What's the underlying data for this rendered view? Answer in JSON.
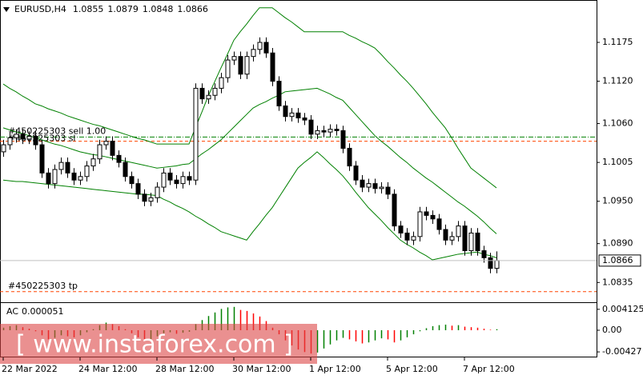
{
  "chart_data": {
    "type": "candlestick",
    "symbol": "EURUSD,H4",
    "categories": [
      "22 Mar 2022",
      null,
      null,
      null,
      null,
      null,
      null,
      null,
      null,
      null,
      null,
      null,
      "24 Mar 12:00",
      null,
      null,
      null,
      null,
      null,
      null,
      null,
      null,
      null,
      null,
      null,
      "28 Mar 12:00",
      null,
      null,
      null,
      null,
      null,
      null,
      null,
      null,
      null,
      null,
      null,
      "30 Mar 12:00",
      null,
      null,
      null,
      null,
      null,
      null,
      null,
      null,
      null,
      null,
      null,
      "1 Apr 12:00",
      null,
      null,
      null,
      null,
      null,
      null,
      null,
      null,
      null,
      null,
      null,
      "5 Apr 12:00",
      null,
      null,
      null,
      null,
      null,
      null,
      null,
      null,
      null,
      null,
      null,
      "7 Apr 12:00",
      null,
      null,
      null,
      null,
      null
    ],
    "open": [
      1.102,
      1.103,
      1.104,
      1.1045,
      1.1038,
      1.1042,
      1.103,
      1.099,
      1.0975,
      1.0995,
      1.1005,
      1.099,
      1.098,
      1.0985,
      1.1,
      1.101,
      1.103,
      1.1035,
      1.1015,
      1.1005,
      1.0985,
      1.0975,
      1.096,
      1.095,
      1.0955,
      1.097,
      1.099,
      1.098,
      1.0975,
      1.0985,
      1.098,
      1.111,
      1.1095,
      1.11,
      1.111,
      1.1125,
      1.115,
      1.1155,
      1.113,
      1.1155,
      1.1165,
      1.1175,
      1.116,
      1.112,
      1.1085,
      1.107,
      1.1075,
      1.1068,
      1.1065,
      1.1045,
      1.105,
      1.1048,
      1.1052,
      1.105,
      1.1025,
      1.1,
      1.098,
      1.097,
      1.0975,
      1.0968,
      1.097,
      1.096,
      1.0915,
      1.0905,
      1.0895,
      1.09,
      1.0935,
      1.093,
      1.0925,
      1.091,
      1.0895,
      1.09,
      1.0915,
      1.088,
      1.0905,
      1.088,
      1.087,
      1.0855
    ],
    "high": [
      1.1037,
      1.1047,
      1.1052,
      1.1052,
      1.1049,
      1.1049,
      1.1037,
      1.0997,
      1.1002,
      1.1012,
      1.1012,
      1.0997,
      1.0992,
      1.1007,
      1.1017,
      1.1037,
      1.1042,
      1.1042,
      1.1022,
      1.1012,
      1.0992,
      1.0982,
      1.0967,
      1.0962,
      1.0977,
      1.0997,
      1.0997,
      1.0987,
      1.0992,
      1.0992,
      1.1117,
      1.1117,
      1.1107,
      1.1117,
      1.1132,
      1.1157,
      1.1162,
      1.1162,
      1.1162,
      1.1172,
      1.1182,
      1.1182,
      1.1167,
      1.1127,
      1.1092,
      1.1082,
      1.1082,
      1.1075,
      1.1072,
      1.1057,
      1.1057,
      1.1059,
      1.1059,
      1.1057,
      1.1032,
      1.1007,
      1.0987,
      1.0982,
      1.0982,
      1.0977,
      1.0977,
      1.0967,
      1.0922,
      1.0912,
      1.0907,
      1.0942,
      1.0942,
      1.0937,
      1.0932,
      1.0917,
      1.0907,
      1.0922,
      1.0922,
      1.0912,
      1.0912,
      1.0887,
      1.0877,
      1.0879
    ],
    "low": [
      1.1013,
      1.1023,
      1.1033,
      1.1031,
      1.1031,
      1.1023,
      1.0983,
      1.0968,
      1.0968,
      1.0988,
      1.0983,
      1.0973,
      1.0973,
      1.0978,
      1.0993,
      1.1003,
      1.1023,
      1.1008,
      1.0998,
      1.0978,
      1.0968,
      1.0953,
      1.0943,
      1.0943,
      1.0948,
      1.0963,
      1.0973,
      1.0968,
      1.0968,
      1.0973,
      1.0973,
      1.1088,
      1.1088,
      1.1093,
      1.1103,
      1.1118,
      1.1143,
      1.1123,
      1.1123,
      1.1148,
      1.1158,
      1.1153,
      1.1113,
      1.1078,
      1.1063,
      1.1063,
      1.1061,
      1.1058,
      1.1038,
      1.1038,
      1.1041,
      1.1041,
      1.1043,
      1.1018,
      1.0993,
      1.0973,
      1.0963,
      1.0963,
      1.0961,
      1.0961,
      1.0953,
      1.0908,
      1.0898,
      1.0888,
      1.0888,
      1.0893,
      1.0923,
      1.0918,
      1.0903,
      1.0888,
      1.0888,
      1.0893,
      1.0873,
      1.0873,
      1.0873,
      1.0863,
      1.0848,
      1.0848
    ],
    "close": [
      1.103,
      1.104,
      1.1045,
      1.1038,
      1.1042,
      1.103,
      1.099,
      1.0975,
      1.0995,
      1.1005,
      1.099,
      1.098,
      1.0985,
      1.1,
      1.101,
      1.103,
      1.1035,
      1.1015,
      1.1005,
      1.0985,
      1.0975,
      1.096,
      1.095,
      1.0955,
      1.097,
      1.099,
      1.098,
      1.0975,
      1.0985,
      1.098,
      1.111,
      1.1095,
      1.11,
      1.111,
      1.1125,
      1.115,
      1.1155,
      1.113,
      1.1155,
      1.1165,
      1.1175,
      1.116,
      1.112,
      1.1085,
      1.107,
      1.1075,
      1.1068,
      1.1065,
      1.1045,
      1.105,
      1.1048,
      1.1052,
      1.105,
      1.1025,
      1.1,
      1.098,
      1.097,
      1.0975,
      1.0968,
      1.097,
      1.096,
      1.0915,
      1.0905,
      1.0895,
      1.09,
      1.0935,
      1.093,
      1.0925,
      1.091,
      1.0895,
      1.09,
      1.0915,
      1.088,
      1.0905,
      1.088,
      1.087,
      1.0855,
      1.0866
    ],
    "bull_color": "#ffffff",
    "bear_color": "#000000",
    "bands": [
      {
        "color": "#008000",
        "values": [
          1.1116,
          1.111,
          1.1105,
          1.1099,
          1.1094,
          1.1088,
          1.1085,
          1.1081,
          1.1078,
          1.1075,
          1.1071,
          1.1068,
          1.1065,
          1.1062,
          1.1059,
          1.1057,
          1.1054,
          1.1051,
          1.1048,
          1.1045,
          1.1042,
          1.1039,
          1.1037,
          1.1034,
          1.1031,
          1.1031,
          1.1031,
          1.1031,
          1.1031,
          1.1031,
          1.1054,
          1.1076,
          1.1099,
          1.1119,
          1.1139,
          1.1158,
          1.1178,
          1.119,
          1.1201,
          1.1213,
          1.1224,
          1.1224,
          1.1224,
          1.1217,
          1.121,
          1.1204,
          1.1197,
          1.119,
          1.119,
          1.119,
          1.119,
          1.119,
          1.119,
          1.119,
          1.1185,
          1.1181,
          1.1176,
          1.1172,
          1.1167,
          1.1158,
          1.1148,
          1.1139,
          1.1129,
          1.112,
          1.111,
          1.1099,
          1.1088,
          1.1076,
          1.1065,
          1.1054,
          1.104,
          1.1025,
          1.1011,
          1.0997,
          1.099,
          1.0983,
          1.0976,
          1.0969
        ]
      },
      {
        "color": "#008000",
        "values": [
          1.1054,
          1.1051,
          1.1048,
          1.1046,
          1.1043,
          1.104,
          1.1037,
          1.1034,
          1.1031,
          1.1029,
          1.1026,
          1.1023,
          1.102,
          1.1018,
          1.1016,
          1.1015,
          1.1013,
          1.1011,
          1.1009,
          1.1007,
          1.1005,
          1.1003,
          1.1001,
          1.0999,
          1.0997,
          1.0998,
          1.0999,
          1.1,
          1.1002,
          1.1003,
          1.101,
          1.1017,
          1.1023,
          1.103,
          1.1037,
          1.1046,
          1.1055,
          1.1064,
          1.1073,
          1.1082,
          1.1087,
          1.1091,
          1.1096,
          1.11,
          1.1105,
          1.1106,
          1.1107,
          1.1108,
          1.1109,
          1.111,
          1.1106,
          1.1102,
          1.1097,
          1.1093,
          1.1083,
          1.1073,
          1.1063,
          1.1053,
          1.1043,
          1.1035,
          1.1028,
          1.102,
          1.1012,
          1.1005,
          1.0997,
          1.099,
          1.0983,
          1.0977,
          1.097,
          1.0963,
          1.0956,
          1.0949,
          1.0943,
          1.0936,
          1.0929,
          1.0921,
          1.0912,
          1.0904
        ]
      },
      {
        "color": "#008000",
        "values": [
          1.098,
          1.0979,
          1.0978,
          1.0978,
          1.0977,
          1.0976,
          1.0975,
          1.0974,
          1.0973,
          1.0972,
          1.0971,
          1.097,
          1.0969,
          1.0968,
          1.0967,
          1.0966,
          1.0965,
          1.0964,
          1.0963,
          1.0962,
          1.0961,
          1.096,
          1.096,
          1.0959,
          1.0958,
          1.0953,
          1.0949,
          1.0944,
          1.094,
          1.0935,
          1.0929,
          1.0924,
          1.0918,
          1.0913,
          1.0907,
          1.0904,
          1.0901,
          1.0898,
          1.0895,
          1.0907,
          1.0918,
          1.093,
          1.0941,
          1.0955,
          1.0969,
          1.0983,
          1.0997,
          1.1005,
          1.1012,
          1.102,
          1.1012,
          1.1003,
          1.0995,
          1.0986,
          1.0975,
          1.0963,
          1.0952,
          1.0941,
          1.0932,
          1.0923,
          1.0913,
          1.0904,
          1.0895,
          1.0889,
          1.0884,
          1.0878,
          1.0873,
          1.0867,
          1.0869,
          1.0871,
          1.0873,
          1.0875,
          1.0876,
          1.0877,
          1.0878,
          1.0875,
          1.0873,
          1.087
        ]
      }
    ],
    "ylim": [
      1.0807,
      1.1235
    ],
    "yticks": [
      1.1175,
      {
        "value": 1.112,
        "label": "1.1120"
      },
      {
        "value": 1.106,
        "label": "1.1060"
      },
      1.1005,
      {
        "value": 1.095,
        "label": "1.0950"
      },
      {
        "value": 1.089,
        "label": "1.0890"
      },
      1.0835
    ],
    "orders": [
      {
        "label": "#450225303 sell 1.00",
        "price": 1.1041,
        "color": "#008000"
      },
      {
        "label": "#450225303 sl",
        "price": 1.1035,
        "color": "#ff4500"
      },
      {
        "label": "#450225303 tp",
        "price": 1.0822,
        "color": "#ff4500"
      }
    ],
    "indicator": {
      "type": "histogram",
      "label": "AC",
      "current": 5.1e-05,
      "up_color": "#008000",
      "down_color": "#ff0000",
      "ylim": [
        -0.0052,
        0.0052
      ],
      "yticks": [
        0.004125,
        {
          "value": 0,
          "label": "0.00"
        },
        -0.00427
      ],
      "values": [
        0.0005,
        0.0008,
        0.001,
        0.0006,
        0.0003,
        -0.0002,
        -0.001,
        -0.0018,
        -0.0015,
        -0.001,
        -0.0012,
        -0.0014,
        -0.001,
        -0.0004,
        0.0002,
        0.001,
        0.0015,
        0.0012,
        0.0008,
        0.0002,
        -0.0006,
        -0.0014,
        -0.002,
        -0.0018,
        -0.0012,
        -0.0006,
        -0.0004,
        -0.0007,
        -0.0005,
        -0.0003,
        0.0012,
        0.002,
        0.0028,
        0.0035,
        0.0042,
        0.0045,
        0.0046,
        0.004,
        0.0038,
        0.0033,
        0.0027,
        0.0018,
        0.0005,
        -0.0008,
        -0.002,
        -0.003,
        -0.0038,
        -0.0043,
        -0.0046,
        -0.0044,
        -0.0036,
        -0.0028,
        -0.002,
        -0.0015,
        -0.0018,
        -0.0022,
        -0.0026,
        -0.0024,
        -0.002,
        -0.0016,
        -0.0018,
        -0.0024,
        -0.002,
        -0.0014,
        -0.0008,
        -0.0002,
        0.0004,
        0.0008,
        0.001,
        0.0011,
        0.0009,
        0.001,
        0.0007,
        0.0006,
        0.0005,
        0.0003,
        0.0001,
        0.0002
      ]
    },
    "watermark": "[ www.instaforex.com ]"
  }
}
